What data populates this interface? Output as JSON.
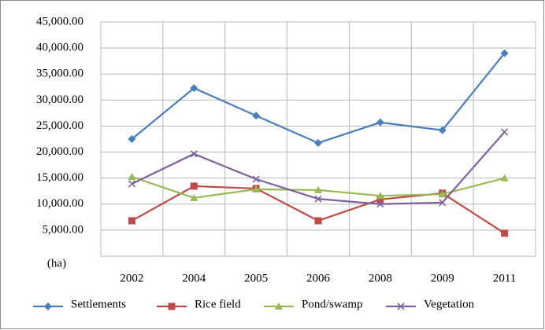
{
  "chart_data": {
    "type": "line",
    "y_label": "(ha)",
    "categories": [
      "2002",
      "2004",
      "2005",
      "2006",
      "2008",
      "2009",
      "2011"
    ],
    "series": [
      {
        "name": "Settlements",
        "color": "#4a7ebb",
        "marker": "diamond",
        "values": [
          22500,
          32300,
          27000,
          21750,
          25700,
          24200,
          39000
        ]
      },
      {
        "name": "Rice field",
        "color": "#be4b48",
        "marker": "square",
        "values": [
          6800,
          13450,
          13000,
          6800,
          10900,
          12100,
          4400
        ]
      },
      {
        "name": "Pond/swamp",
        "color": "#98b954",
        "marker": "triangle",
        "values": [
          15250,
          11200,
          12850,
          12700,
          11600,
          11900,
          15000
        ]
      },
      {
        "name": "Vegetation",
        "color": "#7d60a0",
        "marker": "x",
        "values": [
          13900,
          19650,
          14800,
          11000,
          10000,
          10300,
          23850
        ]
      }
    ],
    "ylim": [
      0,
      45000
    ],
    "yticks": [
      {
        "value": 5000,
        "label": "5,000.00"
      },
      {
        "value": 10000,
        "label": "10,000.00"
      },
      {
        "value": 15000,
        "label": "15,000.00"
      },
      {
        "value": 20000,
        "label": "20,000.00"
      },
      {
        "value": 25000,
        "label": "25,000.00"
      },
      {
        "value": 30000,
        "label": "30,000.00"
      },
      {
        "value": 35000,
        "label": "35,000.00"
      },
      {
        "value": 40000,
        "label": "40,000.00"
      },
      {
        "value": 45000,
        "label": "45,000.00"
      }
    ],
    "grid": true,
    "legend": "bottom"
  }
}
